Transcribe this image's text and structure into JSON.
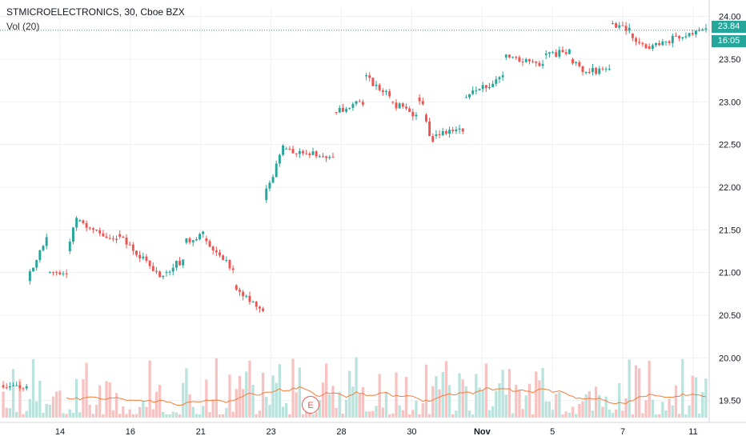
{
  "header": {
    "title": "STMICROELECTRONICS, 30, Cboe BZX",
    "volume_label": "Vol (20)"
  },
  "price_tag": {
    "value": "23.84",
    "color": "#26a69a"
  },
  "time_tag": {
    "value": "16:05",
    "color": "#26a69a"
  },
  "earnings_marker": {
    "label": "E",
    "color": "#ef5350"
  },
  "colors": {
    "up": "#26a69a",
    "down": "#ef5350",
    "vol_up": "#b9e3dc",
    "vol_down": "#f7c3c2",
    "ma": "#f57c3a",
    "grid": "#eef0f3"
  },
  "chart_data": {
    "type": "candlestick",
    "y_ticks": [
      "24.00",
      "23.50",
      "23.00",
      "22.50",
      "22.00",
      "21.50",
      "21.00",
      "20.50",
      "20.00",
      "19.50"
    ],
    "x_ticks": [
      "14",
      "16",
      "21",
      "23",
      "28",
      "30",
      "Nov",
      "5",
      "7",
      "11"
    ],
    "ylim": [
      19.3,
      24.1
    ],
    "last_price": 23.84,
    "segments": [
      {
        "start": 19.68,
        "end": 19.65,
        "n": 8,
        "seed": 3
      },
      {
        "start": 20.9,
        "end": 21.4,
        "n": 6,
        "seed": 5
      },
      {
        "start": 21.0,
        "end": 21.02,
        "n": 6,
        "seed": 7
      },
      {
        "start": 21.25,
        "end": 21.65,
        "n": 3,
        "seed": 9
      },
      {
        "start": 21.6,
        "end": 21.35,
        "n": 12,
        "seed": 11
      },
      {
        "start": 21.45,
        "end": 20.95,
        "n": 14,
        "seed": 13
      },
      {
        "start": 21.0,
        "end": 21.15,
        "n": 6,
        "seed": 15
      },
      {
        "start": 21.35,
        "end": 21.45,
        "n": 6,
        "seed": 17
      },
      {
        "start": 21.4,
        "end": 21.05,
        "n": 9,
        "seed": 19
      },
      {
        "start": 20.85,
        "end": 20.55,
        "n": 9,
        "seed": 21
      },
      {
        "start": 21.85,
        "end": 22.45,
        "n": 6,
        "seed": 23
      },
      {
        "start": 22.45,
        "end": 22.35,
        "n": 15,
        "seed": 25
      },
      {
        "start": 22.88,
        "end": 23.0,
        "n": 9,
        "seed": 27
      },
      {
        "start": 23.3,
        "end": 23.1,
        "n": 8,
        "seed": 29
      },
      {
        "start": 23.0,
        "end": 22.85,
        "n": 8,
        "seed": 31
      },
      {
        "start": 23.05,
        "end": 23.0,
        "n": 2,
        "seed": 33
      },
      {
        "start": 22.85,
        "end": 22.5,
        "n": 3,
        "seed": 35
      },
      {
        "start": 22.6,
        "end": 22.68,
        "n": 9,
        "seed": 37
      },
      {
        "start": 23.05,
        "end": 23.28,
        "n": 12,
        "seed": 39
      },
      {
        "start": 23.52,
        "end": 23.45,
        "n": 12,
        "seed": 41
      },
      {
        "start": 23.55,
        "end": 23.58,
        "n": 8,
        "seed": 43
      },
      {
        "start": 23.5,
        "end": 23.3,
        "n": 6,
        "seed": 45
      },
      {
        "start": 23.35,
        "end": 23.4,
        "n": 6,
        "seed": 47
      },
      {
        "start": 23.92,
        "end": 23.85,
        "n": 6,
        "seed": 49
      },
      {
        "start": 23.8,
        "end": 23.6,
        "n": 5,
        "seed": 51
      },
      {
        "start": 23.65,
        "end": 23.84,
        "n": 18,
        "seed": 53
      }
    ],
    "volume": {
      "max_fraction": 0.14,
      "ma_period": 20
    }
  }
}
